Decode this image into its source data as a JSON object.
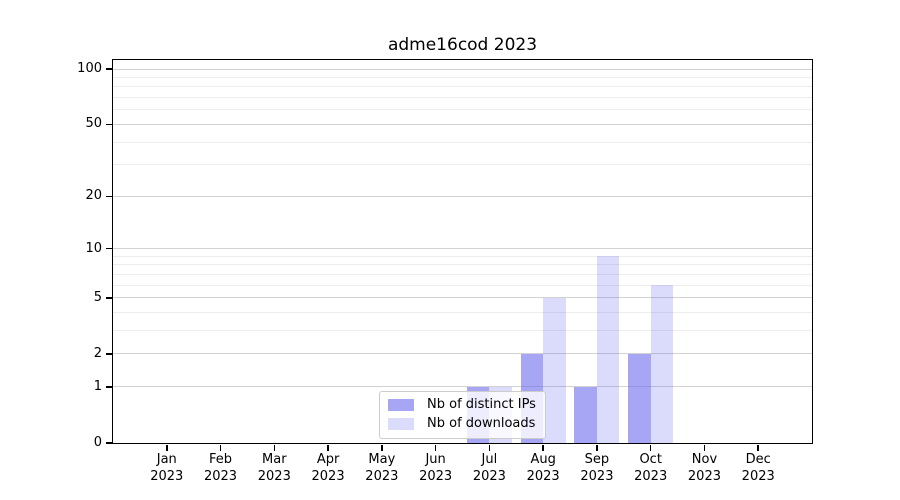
{
  "title": "adme16cod 2023",
  "chart_data": {
    "type": "bar",
    "title": "adme16cod 2023",
    "categories": [
      "Jan 2023",
      "Feb 2023",
      "Mar 2023",
      "Apr 2023",
      "May 2023",
      "Jun 2023",
      "Jul 2023",
      "Aug 2023",
      "Sep 2023",
      "Oct 2023",
      "Nov 2023",
      "Dec 2023"
    ],
    "series": [
      {
        "name": "Nb of distinct IPs",
        "color": "#6666ee",
        "alpha": 0.58,
        "values": [
          0,
          0,
          0,
          0,
          0,
          0,
          1,
          2,
          1,
          2,
          0,
          0
        ]
      },
      {
        "name": "Nb of downloads",
        "color": "#6666ee",
        "alpha": 0.235,
        "values": [
          0,
          0,
          0,
          0,
          0,
          0,
          1,
          5,
          9,
          6,
          0,
          0
        ]
      }
    ],
    "xlabel": "",
    "ylabel": "",
    "y_scale": "log1p",
    "ylim": [
      0,
      112
    ],
    "y_major_ticks": [
      0,
      1,
      2,
      5,
      10,
      20,
      50,
      100
    ],
    "y_minor_ticks": [
      3,
      4,
      6,
      7,
      8,
      9,
      30,
      40,
      60,
      70,
      80,
      90
    ],
    "grid": {
      "axis": "y",
      "major_color": "#d2d2d2",
      "minor_color": "#ededed"
    },
    "legend_position": "lower center inside",
    "axis_color": "#000000",
    "background_color": "#ffffff"
  }
}
